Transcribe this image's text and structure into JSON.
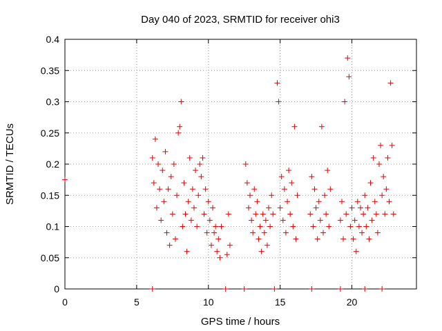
{
  "chart_data": {
    "type": "scatter",
    "title": "Day 040 of 2023, SRMTID for receiver ohi3",
    "xlabel": "GPS time / hours",
    "ylabel": "SRMTID / TECUs",
    "xlim": [
      0,
      24.5
    ],
    "ylim": [
      0,
      0.4
    ],
    "xticks": [
      0,
      5,
      10,
      15,
      20
    ],
    "yticks": [
      0,
      0.05,
      0.1,
      0.15,
      0.2,
      0.25,
      0.3,
      0.35,
      0.4
    ],
    "xtick_labels": [
      "0",
      "5",
      "10",
      "15",
      "20"
    ],
    "ytick_labels": [
      "0",
      "0.05",
      "0.1",
      "0.15",
      "0.2",
      "0.25",
      "0.3",
      "0.35",
      "0.4"
    ],
    "grid": true,
    "marker": "+",
    "color": "#e00000",
    "series": [
      {
        "name": "SRMTID",
        "points": [
          [
            0.0,
            0.175
          ],
          [
            6.1,
            0.21
          ],
          [
            6.2,
            0.17
          ],
          [
            6.3,
            0.24
          ],
          [
            6.4,
            0.13
          ],
          [
            6.5,
            0.2
          ],
          [
            6.6,
            0.16
          ],
          [
            6.7,
            0.11
          ],
          [
            6.8,
            0.19
          ],
          [
            6.9,
            0.14
          ],
          [
            7.0,
            0.22
          ],
          [
            7.1,
            0.09
          ],
          [
            7.2,
            0.16
          ],
          [
            7.3,
            0.07
          ],
          [
            7.4,
            0.18
          ],
          [
            7.5,
            0.12
          ],
          [
            7.6,
            0.2
          ],
          [
            7.7,
            0.08
          ],
          [
            7.8,
            0.15
          ],
          [
            7.9,
            0.25
          ],
          [
            8.0,
            0.26
          ],
          [
            8.1,
            0.3
          ],
          [
            8.2,
            0.1
          ],
          [
            8.3,
            0.17
          ],
          [
            8.4,
            0.12
          ],
          [
            8.5,
            0.06
          ],
          [
            8.6,
            0.14
          ],
          [
            8.7,
            0.21
          ],
          [
            8.8,
            0.11
          ],
          [
            8.9,
            0.16
          ],
          [
            9.0,
            0.13
          ],
          [
            9.1,
            0.19
          ],
          [
            9.2,
            0.1
          ],
          [
            9.3,
            0.15
          ],
          [
            9.4,
            0.2
          ],
          [
            9.5,
            0.18
          ],
          [
            9.6,
            0.21
          ],
          [
            9.7,
            0.12
          ],
          [
            9.8,
            0.16
          ],
          [
            9.9,
            0.09
          ],
          [
            10.0,
            0.14
          ],
          [
            10.1,
            0.11
          ],
          [
            10.2,
            0.07
          ],
          [
            10.3,
            0.13
          ],
          [
            10.4,
            0.09
          ],
          [
            10.5,
            0.1
          ],
          [
            10.6,
            0.06
          ],
          [
            10.7,
            0.08
          ],
          [
            10.8,
            0.05
          ],
          [
            10.9,
            0.1
          ],
          [
            11.3,
            0.055
          ],
          [
            11.4,
            0.12
          ],
          [
            11.5,
            0.07
          ],
          [
            12.6,
            0.2
          ],
          [
            12.7,
            0.17
          ],
          [
            12.8,
            0.13
          ],
          [
            12.9,
            0.15
          ],
          [
            13.0,
            0.11
          ],
          [
            13.1,
            0.09
          ],
          [
            13.2,
            0.16
          ],
          [
            13.3,
            0.12
          ],
          [
            13.4,
            0.14
          ],
          [
            13.5,
            0.08
          ],
          [
            13.6,
            0.1
          ],
          [
            13.7,
            0.06
          ],
          [
            13.8,
            0.12
          ],
          [
            13.9,
            0.09
          ],
          [
            14.0,
            0.11
          ],
          [
            14.1,
            0.07
          ],
          [
            14.2,
            0.13
          ],
          [
            14.3,
            0.1
          ],
          [
            14.4,
            0.15
          ],
          [
            14.5,
            0.12
          ],
          [
            14.8,
            0.33
          ],
          [
            14.9,
            0.3
          ],
          [
            15.0,
            0.13
          ],
          [
            15.1,
            0.18
          ],
          [
            15.2,
            0.11
          ],
          [
            15.3,
            0.16
          ],
          [
            15.4,
            0.09
          ],
          [
            15.5,
            0.14
          ],
          [
            15.6,
            0.19
          ],
          [
            15.7,
            0.12
          ],
          [
            15.8,
            0.17
          ],
          [
            15.9,
            0.1
          ],
          [
            16.0,
            0.26
          ],
          [
            16.1,
            0.08
          ],
          [
            16.2,
            0.15
          ],
          [
            17.1,
            0.12
          ],
          [
            17.2,
            0.18
          ],
          [
            17.3,
            0.1
          ],
          [
            17.4,
            0.16
          ],
          [
            17.5,
            0.13
          ],
          [
            17.6,
            0.08
          ],
          [
            17.7,
            0.14
          ],
          [
            17.8,
            0.11
          ],
          [
            17.9,
            0.26
          ],
          [
            18.0,
            0.09
          ],
          [
            18.1,
            0.15
          ],
          [
            18.2,
            0.12
          ],
          [
            18.3,
            0.19
          ],
          [
            18.4,
            0.1
          ],
          [
            18.5,
            0.16
          ],
          [
            19.2,
            0.11
          ],
          [
            19.3,
            0.14
          ],
          [
            19.4,
            0.08
          ],
          [
            19.5,
            0.3
          ],
          [
            19.6,
            0.12
          ],
          [
            19.7,
            0.37
          ],
          [
            19.8,
            0.34
          ],
          [
            19.9,
            0.1
          ],
          [
            20.0,
            0.13
          ],
          [
            20.1,
            0.08
          ],
          [
            20.2,
            0.11
          ],
          [
            20.3,
            0.06
          ],
          [
            20.4,
            0.14
          ],
          [
            20.5,
            0.1
          ],
          [
            20.6,
            0.13
          ],
          [
            20.7,
            0.09
          ],
          [
            20.8,
            0.12
          ],
          [
            20.9,
            0.15
          ],
          [
            21.0,
            0.1
          ],
          [
            21.1,
            0.13
          ],
          [
            21.2,
            0.08
          ],
          [
            21.3,
            0.17
          ],
          [
            21.4,
            0.11
          ],
          [
            21.5,
            0.21
          ],
          [
            21.6,
            0.14
          ],
          [
            21.7,
            0.12
          ],
          [
            21.8,
            0.09
          ],
          [
            21.9,
            0.2
          ],
          [
            22.0,
            0.23
          ],
          [
            22.1,
            0.15
          ],
          [
            22.2,
            0.18
          ],
          [
            22.3,
            0.12
          ],
          [
            22.4,
            0.16
          ],
          [
            22.5,
            0.21
          ],
          [
            22.6,
            0.14
          ],
          [
            22.7,
            0.33
          ],
          [
            22.8,
            0.23
          ],
          [
            22.9,
            0.12
          ],
          [
            6.1,
            0.0
          ],
          [
            11.2,
            0.0
          ],
          [
            12.5,
            0.0
          ],
          [
            14.6,
            0.0
          ],
          [
            17.2,
            0.0
          ],
          [
            19.2,
            0.0
          ],
          [
            20.9,
            0.0
          ],
          [
            22.1,
            0.0
          ]
        ]
      }
    ]
  }
}
